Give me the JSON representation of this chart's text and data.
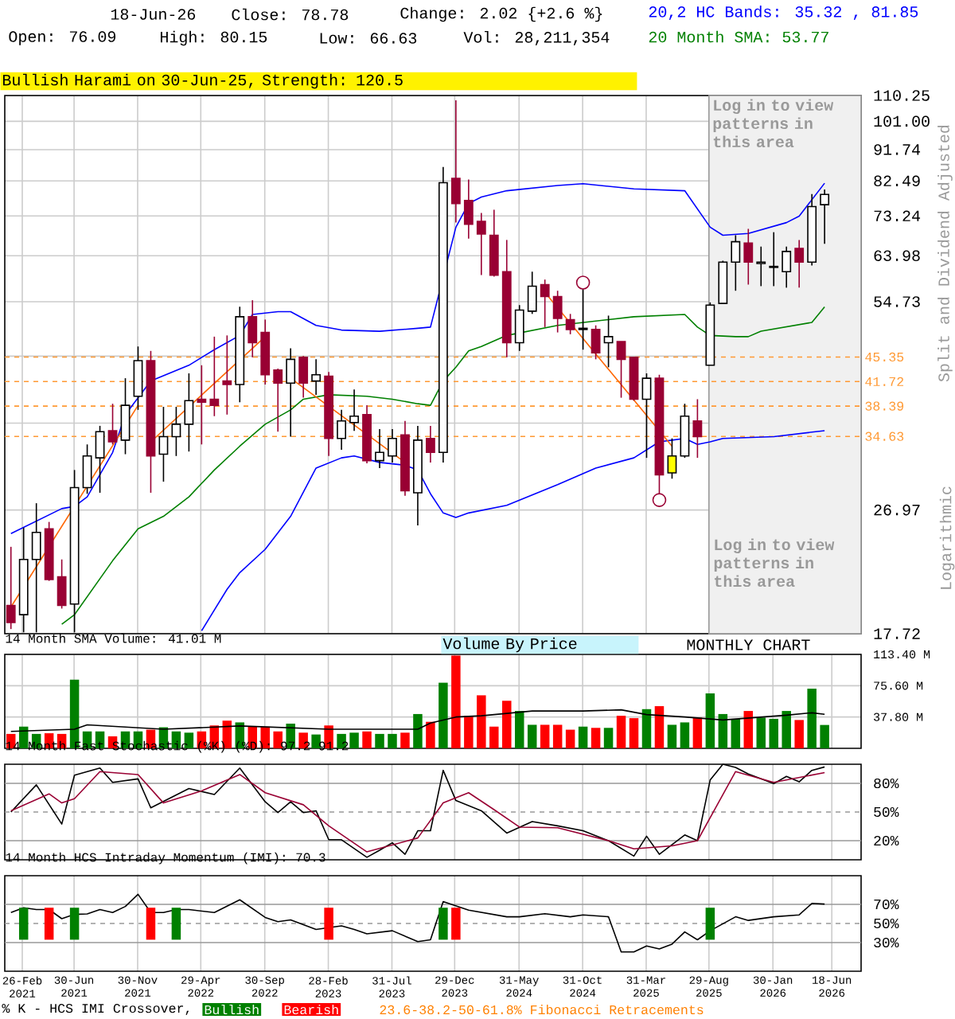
{
  "chart_data": [
    {
      "type": "candlestick",
      "x": [
        "2021-02",
        "2021-03",
        "2021-04",
        "2021-05",
        "2021-06",
        "2021-07",
        "2021-08",
        "2021-09",
        "2021-10",
        "2021-11",
        "2021-12",
        "2022-01",
        "2022-02",
        "2022-03",
        "2022-04",
        "2022-05",
        "2022-06",
        "2022-07",
        "2022-08",
        "2022-09",
        "2022-10",
        "2022-11",
        "2022-12",
        "2023-01",
        "2023-02",
        "2023-03",
        "2023-04",
        "2023-05",
        "2023-06",
        "2023-07",
        "2023-08",
        "2023-09",
        "2023-10",
        "2023-11",
        "2023-12",
        "2024-01",
        "2024-02",
        "2024-03",
        "2024-04",
        "2024-05",
        "2024-06",
        "2024-07",
        "2024-08",
        "2024-09",
        "2024-10",
        "2024-11",
        "2024-12",
        "2025-01",
        "2025-02",
        "2025-03",
        "2025-04",
        "2025-05",
        "2025-06",
        "2025-07",
        "2025-08",
        "2025-09",
        "2025-10",
        "2025-11",
        "2025-12",
        "2026-01",
        "2026-02",
        "2026-03",
        "2026-04",
        "2026-05",
        "2026-06"
      ],
      "ohlc": [
        [
          19.5,
          23.8,
          18.0,
          18.4
        ],
        [
          18.9,
          25.4,
          17.8,
          22.8
        ],
        [
          22.8,
          27.6,
          17.8,
          25.0
        ],
        [
          25.3,
          25.9,
          21.2,
          21.3
        ],
        [
          21.5,
          22.8,
          19.3,
          19.5
        ],
        [
          19.6,
          30.9,
          17.8,
          29.1
        ],
        [
          29.1,
          33.7,
          28.5,
          32.4
        ],
        [
          32.2,
          35.9,
          28.6,
          35.2
        ],
        [
          35.3,
          38.7,
          33.7,
          34.0
        ],
        [
          34.2,
          42.2,
          32.6,
          38.5
        ],
        [
          39.7,
          47.0,
          37.9,
          44.8
        ],
        [
          44.8,
          46.3,
          28.6,
          32.4
        ],
        [
          32.6,
          38.3,
          29.7,
          34.6
        ],
        [
          34.6,
          38.3,
          32.4,
          36.1
        ],
        [
          36.1,
          42.9,
          32.9,
          39.1
        ],
        [
          39.3,
          44.1,
          33.7,
          38.9
        ],
        [
          39.3,
          48.6,
          37.1,
          38.5
        ],
        [
          41.8,
          48.8,
          37.3,
          41.3
        ],
        [
          41.3,
          53.8,
          38.9,
          52.0
        ],
        [
          52.0,
          55.0,
          45.3,
          47.6
        ],
        [
          49.3,
          51.5,
          41.3,
          42.7
        ],
        [
          43.4,
          43.6,
          35.2,
          41.5
        ],
        [
          41.5,
          46.7,
          34.6,
          45.0
        ],
        [
          45.3,
          45.5,
          39.5,
          41.5
        ],
        [
          41.8,
          45.0,
          39.9,
          42.7
        ],
        [
          42.5,
          43.1,
          32.4,
          34.4
        ],
        [
          34.4,
          37.9,
          33.1,
          36.5
        ],
        [
          36.3,
          40.6,
          35.3,
          37.1
        ],
        [
          37.3,
          38.5,
          31.6,
          31.9
        ],
        [
          31.9,
          35.5,
          31.1,
          32.8
        ],
        [
          32.4,
          35.5,
          31.7,
          34.4
        ],
        [
          34.8,
          36.5,
          28.3,
          28.8
        ],
        [
          28.6,
          35.9,
          25.6,
          34.2
        ],
        [
          34.4,
          35.9,
          31.7,
          32.8
        ],
        [
          32.8,
          86.5,
          31.7,
          82.0
        ],
        [
          83.2,
          108.5,
          71.6,
          76.4
        ],
        [
          77.2,
          82.9,
          67.8,
          71.2
        ],
        [
          71.9,
          74.0,
          59.9,
          68.9
        ],
        [
          68.6,
          74.8,
          59.6,
          59.9
        ],
        [
          60.6,
          67.5,
          45.3,
          47.6
        ],
        [
          47.6,
          54.1,
          46.3,
          53.2
        ],
        [
          53.0,
          60.6,
          52.5,
          57.7
        ],
        [
          58.0,
          59.0,
          50.2,
          55.7
        ],
        [
          55.7,
          56.8,
          49.3,
          51.7
        ],
        [
          51.5,
          52.5,
          49.0,
          49.8
        ],
        [
          49.8,
          57.1,
          46.5,
          50.0
        ],
        [
          49.8,
          50.5,
          45.0,
          46.0
        ],
        [
          47.6,
          52.2,
          43.8,
          48.6
        ],
        [
          47.8,
          47.8,
          39.5,
          45.0
        ],
        [
          45.3,
          45.3,
          39.1,
          39.3
        ],
        [
          39.3,
          42.9,
          32.2,
          42.2
        ],
        [
          42.2,
          42.7,
          28.5,
          30.4
        ],
        [
          30.6,
          34.4,
          30.0,
          32.4
        ],
        [
          32.4,
          38.7,
          32.2,
          37.1
        ],
        [
          36.5,
          39.3,
          32.2,
          34.6
        ],
        [
          44.1,
          54.6,
          44.1,
          54.1
        ],
        [
          54.4,
          62.9,
          54.4,
          62.6
        ],
        [
          62.6,
          68.6,
          56.8,
          67.1
        ],
        [
          66.8,
          70.1,
          58.0,
          62.6
        ],
        [
          62.3,
          66.0,
          57.7,
          62.6
        ],
        [
          61.5,
          69.3,
          57.7,
          61.7
        ],
        [
          60.6,
          66.0,
          57.4,
          64.9
        ],
        [
          65.6,
          67.5,
          57.4,
          62.6
        ],
        [
          62.6,
          78.9,
          61.9,
          75.6
        ],
        [
          76.09,
          80.15,
          66.63,
          78.78
        ]
      ],
      "colors": [
        "#990033",
        "#ffffff",
        "#ffffff",
        "#990033",
        "#990033",
        "#ffffff",
        "#ffffff",
        "#ffffff",
        "#990033",
        "#ffffff",
        "#ffffff",
        "#990033",
        "#ffffff",
        "#ffffff",
        "#ffffff",
        "#990033",
        "#990033",
        "#990033",
        "#ffffff",
        "#990033",
        "#990033",
        "#990033",
        "#ffffff",
        "#990033",
        "#ffffff",
        "#990033",
        "#ffffff",
        "#ffffff",
        "#990033",
        "#ffffff",
        "#ffffff",
        "#990033",
        "#ffffff",
        "#990033",
        "#ffffff",
        "#990033",
        "#990033",
        "#990033",
        "#990033",
        "#990033",
        "#ffffff",
        "#ffffff",
        "#990033",
        "#990033",
        "#990033",
        "#ffffff",
        "#990033",
        "#ffffff",
        "#990033",
        "#990033",
        "#ffffff",
        "#990033",
        "#ffff00",
        "#ffffff",
        "#990033",
        "#ffffff",
        "#ffffff",
        "#ffffff",
        "#990033",
        "#ffffff",
        "#ffffff",
        "#ffffff",
        "#990033",
        "#ffffff",
        "#ffffff"
      ],
      "series": [
        {
          "type": "line",
          "name": "20,2 HC Bands: 35.32 , 81.85",
          "color": "#0000ff",
          "x": [
            "2021-02",
            "2021-06",
            "2021-07",
            "2021-08",
            "2021-10",
            "2021-11",
            "2022-01",
            "2022-04",
            "2022-06",
            "2022-08",
            "2022-09",
            "2022-11",
            "2022-12",
            "2023-02",
            "2023-04",
            "2023-07",
            "2023-10",
            "2023-11",
            "2024-01",
            "2024-02",
            "2024-03",
            "2024-05",
            "2024-09",
            "2024-11",
            "2025-03",
            "2025-07",
            "2025-09",
            "2025-10",
            "2025-12",
            "2026-03",
            "2026-04",
            "2026-06"
          ],
          "values": [
            24.9,
            27.1,
            27.3,
            28.2,
            32.8,
            37.3,
            41.8,
            44.1,
            46.5,
            48.8,
            52.4,
            52.9,
            52.9,
            50.5,
            49.7,
            49.5,
            50.0,
            50.2,
            70.5,
            76.4,
            78.1,
            79.8,
            81.2,
            81.7,
            80.3,
            79.8,
            70.5,
            68.6,
            69.0,
            71.6,
            73.2,
            81.85
          ]
        },
        {
          "type": "line",
          "color": "#0000ff",
          "x": [
            "2022-05",
            "2022-07",
            "2022-08",
            "2022-10",
            "2022-12",
            "2023-02",
            "2023-04",
            "2023-05",
            "2023-07",
            "2023-09",
            "2023-10",
            "2023-11",
            "2023-12",
            "2024-01",
            "2024-02",
            "2024-05",
            "2024-09",
            "2024-12",
            "2025-03",
            "2025-05",
            "2025-06",
            "2025-07",
            "2025-08",
            "2025-09",
            "2025-10",
            "2026-02",
            "2026-06"
          ],
          "values": [
            17.9,
            20.6,
            21.8,
            23.6,
            26.4,
            31.1,
            32.2,
            32.4,
            31.7,
            31.4,
            30.9,
            28.5,
            26.7,
            26.3,
            26.7,
            27.4,
            29.4,
            31.1,
            32.2,
            34.0,
            34.2,
            34.4,
            33.7,
            34.0,
            34.4,
            34.6,
            35.32
          ]
        },
        {
          "type": "line",
          "name": "20 Month SMA: 53.77",
          "color": "#008000",
          "x": [
            "2021-06",
            "2021-07",
            "2021-10",
            "2021-12",
            "2022-02",
            "2022-04",
            "2022-06",
            "2022-08",
            "2022-10",
            "2022-12",
            "2023-01",
            "2023-03",
            "2023-06",
            "2023-08",
            "2023-10",
            "2023-11",
            "2023-12",
            "2024-01",
            "2024-02",
            "2024-03",
            "2024-05",
            "2024-09",
            "2025-01",
            "2025-03",
            "2025-07",
            "2025-08",
            "2025-09",
            "2025-11",
            "2025-12",
            "2026-01",
            "2026-05",
            "2026-06"
          ],
          "values": [
            18.3,
            18.9,
            22.7,
            25.3,
            26.4,
            28.2,
            30.9,
            33.5,
            36.1,
            37.9,
            39.3,
            39.9,
            39.7,
            39.3,
            38.7,
            38.5,
            41.8,
            43.8,
            46.3,
            47.0,
            48.8,
            50.5,
            51.5,
            52.0,
            52.4,
            50.2,
            48.8,
            48.6,
            48.6,
            49.5,
            51.0,
            53.77
          ]
        },
        {
          "type": "line",
          "color": "#ff6600",
          "x": [
            "2021-02",
            "2021-12"
          ],
          "values": [
            19.4,
            38.5
          ]
        },
        {
          "type": "line",
          "color": "#ff6600",
          "x": [
            "2022-01",
            "2022-10"
          ],
          "values": [
            34.0,
            48.6
          ]
        },
        {
          "type": "line",
          "color": "#ff6600",
          "x": [
            "2022-12",
            "2023-09"
          ],
          "values": [
            42.2,
            31.7
          ]
        },
        {
          "type": "line",
          "color": "#ff6600",
          "x": [
            "2024-08",
            "2025-06"
          ],
          "values": [
            56.5,
            33.5
          ]
        },
        {
          "type": "scatter",
          "marker": "circle",
          "color": "#990033",
          "x": [
            "2024-11",
            "2025-05"
          ],
          "values": [
            58.4,
            27.9
          ]
        }
      ],
      "xlim": [
        "2021-01-17",
        "2026-08-28"
      ],
      "xticks": [
        {
          "value": "2021-02-26",
          "label": null
        },
        {
          "value": "2021-06-30",
          "label": null
        },
        {
          "value": "2021-11-30",
          "label": null
        },
        {
          "value": "2022-04-29",
          "label": null
        },
        {
          "value": "2022-09-30",
          "label": null
        },
        {
          "value": "2023-02-28",
          "label": null
        },
        {
          "value": "2023-07-31",
          "label": null
        },
        {
          "value": "2023-12-29",
          "label": null
        },
        {
          "value": "2024-05-31",
          "label": null
        },
        {
          "value": "2024-10-31",
          "label": null
        },
        {
          "value": "2025-03-31",
          "label": null
        },
        {
          "value": "2025-08-29",
          "label": null
        },
        {
          "value": "2026-01-30",
          "label": null
        },
        {
          "value": "2026-06-18",
          "label": null
        }
      ],
      "ylim": [
        17.72,
        110.25
      ],
      "log": true,
      "yticks": [
        {
          "value": 17.72,
          "label": "17.72"
        },
        {
          "value": 26.97,
          "label": "26.97"
        },
        {
          "value": 36.23,
          "label": null
        },
        {
          "value": 45.48,
          "label": null
        },
        {
          "value": 54.73,
          "label": "54.73"
        },
        {
          "value": 63.98,
          "label": "63.98"
        },
        {
          "value": 73.24,
          "label": "73.24"
        },
        {
          "value": 82.49,
          "label": "82.49"
        },
        {
          "value": 91.74,
          "label": "91.74"
        },
        {
          "value": 101.0,
          "label": "101.00"
        },
        {
          "value": 110.25,
          "label": "110.25"
        }
      ],
      "grid": true,
      "tick_labels": "y",
      "legend": "top right",
      "ylabel": "Split and Dividend Adjusted",
      "ref_lines": [
        {
          "axis": "y",
          "value": 45.35,
          "label": "45.35",
          "color": "#ff9933",
          "line_style": "dashed"
        },
        {
          "axis": "y",
          "value": 41.72,
          "label": "41.72",
          "color": "#ff9933",
          "line_style": "dashed"
        },
        {
          "axis": "y",
          "value": 38.39,
          "label": "38.39",
          "color": "#ff9933",
          "line_style": "dashed"
        },
        {
          "axis": "y",
          "value": 34.63,
          "label": "34.63",
          "color": "#ff9933",
          "line_style": "dashed"
        }
      ],
      "bands": [
        {
          "axis": "x",
          "from": "2025-08-29",
          "to": "2026-08-28",
          "label": "Log in to view patterns in this area",
          "color": "#f0f0f0"
        }
      ],
      "annotations": [
        "18-Jun-26",
        "Close: 78.78",
        "Change: 2.02 {+2.6 %}",
        "Open: 76.09",
        "High: 80.15",
        "Low: 66.63",
        "Vol: 28,211,354",
        "Bullish Harami on 30-Jun-25, Strength: 120.5",
        "Log in to view patterns in this area",
        "Logarithmic"
      ]
    },
    {
      "type": "bar",
      "title": "14 Month SMA Volume: 41.01 M",
      "series": [
        {
          "type": "bar",
          "x": [
            "2021-02",
            "2021-03",
            "2021-04",
            "2021-05",
            "2021-06",
            "2021-07",
            "2021-08",
            "2021-09",
            "2021-10",
            "2021-11",
            "2021-12",
            "2022-01",
            "2022-02",
            "2022-03",
            "2022-04",
            "2022-05",
            "2022-06",
            "2022-07",
            "2022-08",
            "2022-09",
            "2022-10",
            "2022-11",
            "2022-12",
            "2023-01",
            "2023-02",
            "2023-03",
            "2023-04",
            "2023-05",
            "2023-06",
            "2023-07",
            "2023-08",
            "2023-09",
            "2023-10",
            "2023-11",
            "2023-12",
            "2024-01",
            "2024-02",
            "2024-03",
            "2024-04",
            "2024-05",
            "2024-06",
            "2024-07",
            "2024-08",
            "2024-09",
            "2024-10",
            "2024-11",
            "2024-12",
            "2025-01",
            "2025-02",
            "2025-03",
            "2025-04",
            "2025-05",
            "2025-06",
            "2025-07",
            "2025-08",
            "2025-09",
            "2025-10",
            "2025-11",
            "2025-12",
            "2026-01",
            "2026-02",
            "2026-03",
            "2026-04",
            "2026-05",
            "2026-06"
          ],
          "values": [
            17.4,
            26.2,
            17.4,
            18.2,
            17.4,
            82.9,
            20.4,
            20.4,
            14.5,
            20.4,
            20.4,
            22.5,
            25.4,
            20.4,
            18.9,
            20.4,
            27.6,
            33.4,
            31.3,
            26.2,
            26.2,
            20.4,
            29.8,
            18.9,
            16.7,
            27.6,
            17.4,
            18.9,
            20.4,
            17.4,
            17.4,
            18.9,
            41.4,
            32.0,
            79.2,
            112.0,
            39.3,
            64.0,
            26.2,
            57.4,
            45.1,
            28.4,
            28.4,
            28.4,
            22.5,
            26.2,
            24.7,
            24.7,
            39.3,
            36.4,
            47.3,
            50.9,
            28.4,
            31.3,
            37.1,
            66.2,
            41.4,
            35.6,
            45.1,
            37.1,
            35.6,
            45.1,
            34.2,
            72.0,
            28.2
          ],
          "colors": [
            "#ff0000",
            "#008000",
            "#008000",
            "#ff0000",
            "#ff0000",
            "#008000",
            "#008000",
            "#008000",
            "#ff0000",
            "#008000",
            "#008000",
            "#ff0000",
            "#008000",
            "#008000",
            "#008000",
            "#ff0000",
            "#ff0000",
            "#ff0000",
            "#008000",
            "#ff0000",
            "#ff0000",
            "#ff0000",
            "#008000",
            "#ff0000",
            "#008000",
            "#ff0000",
            "#008000",
            "#008000",
            "#ff0000",
            "#008000",
            "#008000",
            "#ff0000",
            "#008000",
            "#ff0000",
            "#008000",
            "#ff0000",
            "#ff0000",
            "#ff0000",
            "#ff0000",
            "#ff0000",
            "#008000",
            "#008000",
            "#ff0000",
            "#ff0000",
            "#ff0000",
            "#008000",
            "#ff0000",
            "#008000",
            "#ff0000",
            "#ff0000",
            "#008000",
            "#ff0000",
            "#008000",
            "#008000",
            "#ff0000",
            "#008000",
            "#008000",
            "#008000",
            "#ff0000",
            "#008000",
            "#008000",
            "#008000",
            "#ff0000",
            "#008000",
            "#008000"
          ]
        },
        {
          "type": "line",
          "color": "#000000",
          "x": [
            "2021-02",
            "2021-07",
            "2021-08",
            "2022-02",
            "2022-08",
            "2023-03",
            "2023-10",
            "2023-11",
            "2024-01",
            "2024-03",
            "2024-07",
            "2024-11",
            "2025-02",
            "2025-04",
            "2025-07",
            "2025-10",
            "2026-03",
            "2026-05",
            "2026-06"
          ],
          "values": [
            20.4,
            23,
            28.4,
            23,
            27,
            23,
            23,
            30.5,
            37.8,
            39.3,
            45,
            45,
            46.5,
            40.7,
            37.8,
            34.2,
            40,
            42.9,
            41.01
          ]
        }
      ],
      "xlim": [
        "2021-01-17",
        "2026-08-28"
      ],
      "xticks": [
        {
          "value": "2021-02-26",
          "label": null
        },
        {
          "value": "2021-06-30",
          "label": null
        },
        {
          "value": "2021-11-30",
          "label": null
        },
        {
          "value": "2022-04-29",
          "label": null
        },
        {
          "value": "2022-09-30",
          "label": null
        },
        {
          "value": "2023-02-28",
          "label": null
        },
        {
          "value": "2023-07-31",
          "label": null
        },
        {
          "value": "2023-12-29",
          "label": null
        },
        {
          "value": "2024-05-31",
          "label": null
        },
        {
          "value": "2024-10-31",
          "label": null
        },
        {
          "value": "2025-03-31",
          "label": null
        },
        {
          "value": "2025-08-29",
          "label": null
        },
        {
          "value": "2026-01-30",
          "label": null
        },
        {
          "value": "2026-06-18",
          "label": null
        }
      ],
      "ylim": [
        0,
        113.4
      ],
      "yticks": [
        {
          "value": 37.8,
          "label": "37.80 M"
        },
        {
          "value": 75.6,
          "label": "75.60 M"
        },
        {
          "value": 113.4,
          "label": "113.40 M"
        }
      ],
      "grid": true,
      "tick_labels": "y",
      "annotations": [
        "Volume By Price",
        "MONTHLY CHART"
      ]
    },
    {
      "type": "line",
      "title": "14 Month Fast Stochastic (%K) (%D): 97.2  91.2",
      "series": [
        {
          "color": "#000000",
          "x": [
            "2021-02",
            "2021-04",
            "2021-06",
            "2021-07",
            "2021-09",
            "2021-10",
            "2021-12",
            "2022-01",
            "2022-04",
            "2022-06",
            "2022-08",
            "2022-10",
            "2022-11",
            "2022-12",
            "2023-01",
            "2023-02",
            "2023-03",
            "2023-04",
            "2023-06",
            "2023-07",
            "2023-08",
            "2023-09",
            "2023-10",
            "2023-11",
            "2023-12",
            "2024-01",
            "2024-03",
            "2024-05",
            "2024-07",
            "2024-09",
            "2024-11",
            "2025-01",
            "2025-03",
            "2025-04",
            "2025-05",
            "2025-07",
            "2025-08",
            "2025-09",
            "2025-10",
            "2025-11",
            "2025-12",
            "2026-02",
            "2026-03",
            "2026-04",
            "2026-05",
            "2026-06"
          ],
          "values": [
            50,
            78.4,
            37.4,
            88.5,
            96,
            81,
            84.7,
            54.4,
            74.6,
            68.3,
            96,
            60.7,
            49.4,
            60.7,
            49.4,
            51.3,
            21,
            21,
            2.6,
            10,
            17.8,
            5.8,
            30.4,
            30.4,
            93.6,
            62,
            51.3,
            28,
            40,
            35.5,
            30.4,
            20,
            3.9,
            24.7,
            5.8,
            26,
            20,
            83.5,
            100,
            96.7,
            89.8,
            79.7,
            87.3,
            81.6,
            93.6,
            97.2
          ]
        },
        {
          "color": "#990033",
          "x": [
            "2021-02",
            "2021-05",
            "2021-06",
            "2021-07",
            "2021-09",
            "2021-12",
            "2022-02",
            "2022-05",
            "2022-08",
            "2022-10",
            "2023-01",
            "2023-03",
            "2023-06",
            "2023-10",
            "2023-12",
            "2024-02",
            "2024-04",
            "2024-06",
            "2024-09",
            "2025-01",
            "2025-03",
            "2025-06",
            "2025-08",
            "2025-11",
            "2026-02",
            "2026-06"
          ],
          "values": [
            51.3,
            69,
            59.5,
            63.9,
            92.3,
            89.2,
            59.5,
            72.1,
            89.2,
            70.2,
            57.6,
            35.5,
            8.3,
            22.8,
            59.5,
            70.2,
            52.5,
            34.2,
            33.6,
            20,
            11.5,
            14.6,
            20,
            92.3,
            81,
            91.2
          ]
        }
      ],
      "xlim": [
        "2021-01-17",
        "2026-08-28"
      ],
      "xticks": [
        {
          "value": "2021-02-26",
          "label": null
        },
        {
          "value": "2021-06-30",
          "label": null
        },
        {
          "value": "2021-11-30",
          "label": null
        },
        {
          "value": "2022-04-29",
          "label": null
        },
        {
          "value": "2022-09-30",
          "label": null
        },
        {
          "value": "2023-02-28",
          "label": null
        },
        {
          "value": "2023-07-31",
          "label": null
        },
        {
          "value": "2023-12-29",
          "label": null
        },
        {
          "value": "2024-05-31",
          "label": null
        },
        {
          "value": "2024-10-31",
          "label": null
        },
        {
          "value": "2025-03-31",
          "label": null
        },
        {
          "value": "2025-08-29",
          "label": null
        },
        {
          "value": "2026-01-30",
          "label": null
        },
        {
          "value": "2026-06-18",
          "label": null
        }
      ],
      "ylim": [
        0,
        100
      ],
      "yticks": [
        {
          "value": 20,
          "label": "20%"
        },
        {
          "value": 50,
          "label": "50%"
        },
        {
          "value": 80,
          "label": "80%"
        }
      ],
      "grid": "x",
      "tick_labels": "y",
      "ref_lines": [
        {
          "axis": "y",
          "value": 80,
          "color": "#999999",
          "line_style": "solid"
        },
        {
          "axis": "y",
          "value": 50,
          "color": "#999999",
          "line_style": "dashed"
        },
        {
          "axis": "y",
          "value": 20,
          "color": "#999999",
          "line_style": "solid"
        }
      ]
    },
    {
      "type": "line",
      "title": "14 Month HCS Intraday Momentum (IMI): 70.3",
      "series": [
        {
          "type": "line",
          "color": "#000000",
          "x": [
            "2021-02",
            "2021-03",
            "2021-04",
            "2021-05",
            "2021-06",
            "2021-07",
            "2021-08",
            "2021-09",
            "2021-10",
            "2021-11",
            "2021-12",
            "2022-01",
            "2022-02",
            "2022-03",
            "2022-04",
            "2022-06",
            "2022-08",
            "2022-10",
            "2022-11",
            "2022-12",
            "2023-01",
            "2023-02",
            "2023-03",
            "2023-04",
            "2023-05",
            "2023-06",
            "2023-08",
            "2023-10",
            "2023-11",
            "2023-12",
            "2024-02",
            "2024-05",
            "2024-06",
            "2024-08",
            "2024-10",
            "2024-11",
            "2025-01",
            "2025-02",
            "2025-03",
            "2025-04",
            "2025-05",
            "2025-06",
            "2025-07",
            "2025-08",
            "2025-09",
            "2025-11",
            "2025-12",
            "2026-02",
            "2026-04",
            "2026-05",
            "2026-06"
          ],
          "values": [
            61.4,
            66.5,
            64.6,
            64.6,
            55,
            59.5,
            60,
            64.6,
            61.4,
            67.8,
            80.5,
            61.4,
            61.4,
            64.6,
            64.6,
            61.4,
            74.8,
            56.3,
            51.9,
            53.8,
            48.7,
            43.7,
            45.6,
            47.5,
            43.7,
            39.2,
            42.4,
            31,
            32.9,
            72.9,
            64,
            57,
            57,
            60.2,
            57,
            59,
            57,
            20.2,
            20.2,
            26.5,
            23.3,
            28.4,
            41.1,
            32.9,
            42.4,
            57,
            53.2,
            57,
            59,
            71,
            70.3
          ]
        },
        {
          "type": "bar",
          "name": "Bullish",
          "color": "#008000",
          "x": [
            "2021-03",
            "2021-07",
            "2022-03",
            "2023-12",
            "2025-09"
          ],
          "base": [
            33,
            33,
            33,
            33,
            33
          ],
          "values": [
            33.5,
            33.5,
            33.5,
            33.5,
            33.5
          ]
        },
        {
          "type": "bar",
          "name": "Bearish",
          "color": "#ff0000",
          "x": [
            "2021-05",
            "2022-01",
            "2023-03",
            "2024-01"
          ],
          "base": [
            33,
            33,
            33,
            33
          ],
          "values": [
            33.5,
            33.5,
            33.5,
            33.5
          ]
        }
      ],
      "xlim": [
        "2021-01-17",
        "2026-08-28"
      ],
      "xticks": [
        {
          "value": "2021-02-26",
          "label": "26-Feb 2021"
        },
        {
          "value": "2021-06-30",
          "label": "30-Jun 2021"
        },
        {
          "value": "2021-11-30",
          "label": "30-Nov 2021"
        },
        {
          "value": "2022-04-29",
          "label": "29-Apr 2022"
        },
        {
          "value": "2022-09-30",
          "label": "30-Sep 2022"
        },
        {
          "value": "2023-02-28",
          "label": "28-Feb 2023"
        },
        {
          "value": "2023-07-31",
          "label": "31-Jul 2023"
        },
        {
          "value": "2023-12-29",
          "label": "29-Dec 2023"
        },
        {
          "value": "2024-05-31",
          "label": "31-May 2024"
        },
        {
          "value": "2024-10-31",
          "label": "31-Oct 2024"
        },
        {
          "value": "2025-03-31",
          "label": "31-Mar 2025"
        },
        {
          "value": "2025-08-29",
          "label": "29-Aug 2025"
        },
        {
          "value": "2026-01-30",
          "label": "30-Jan 2026"
        },
        {
          "value": "2026-06-18",
          "label": "18-Jun 2026"
        }
      ],
      "ylim": [
        0,
        100
      ],
      "yticks": [
        {
          "value": 30,
          "label": "30%"
        },
        {
          "value": 50,
          "label": "50%"
        },
        {
          "value": 70,
          "label": "70%"
        }
      ],
      "grid": "x",
      "legend": "bottom left",
      "ref_lines": [
        {
          "axis": "y",
          "value": 70,
          "color": "#999999",
          "line_style": "solid"
        },
        {
          "axis": "y",
          "value": 50,
          "color": "#999999",
          "line_style": "dashed"
        },
        {
          "axis": "y",
          "value": 30,
          "color": "#999999",
          "line_style": "solid"
        }
      ],
      "annotations": [
        "% K - HCS IMI Crossover,",
        "23.6-38.2-50-61.8% Fibonacci Retracements"
      ]
    }
  ]
}
